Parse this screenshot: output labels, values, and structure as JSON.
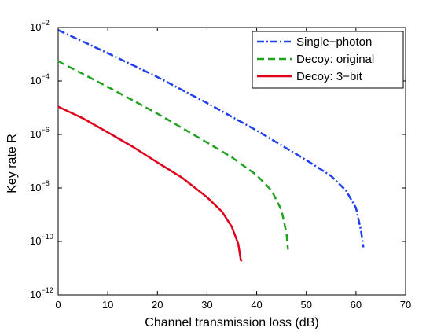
{
  "chart_data": {
    "type": "line",
    "title": "",
    "xlabel": "Channel transmission loss (dB)",
    "ylabel": "Key rate R",
    "xlim": [
      0,
      70
    ],
    "ylim": [
      1e-12,
      0.01
    ],
    "yscale": "log",
    "grid": false,
    "legend_position": "top-right",
    "x_ticks": [
      "0",
      "10",
      "20",
      "30",
      "40",
      "50",
      "60",
      "70"
    ],
    "y_ticks": [
      {
        "base": "10",
        "exp": "−2",
        "value": 0.01
      },
      {
        "base": "10",
        "exp": "−4",
        "value": 0.0001
      },
      {
        "base": "10",
        "exp": "−6",
        "value": 1e-06
      },
      {
        "base": "10",
        "exp": "−8",
        "value": 1e-08
      },
      {
        "base": "10",
        "exp": "−10",
        "value": 1e-10
      },
      {
        "base": "10",
        "exp": "−12",
        "value": 1e-12
      }
    ],
    "series": [
      {
        "name": "Single−photon",
        "color": "#1f3ff0",
        "style": "dash-dot",
        "x": [
          0,
          10,
          20,
          30,
          40,
          50,
          55,
          58,
          60,
          61,
          61.5
        ],
        "y": [
          0.008,
          0.0011,
          0.00014,
          1.5e-05,
          1.4e-06,
          1.1e-07,
          2.8e-08,
          8e-09,
          1.8e-09,
          2.6e-10,
          6e-11
        ]
      },
      {
        "name": "Decoy: original",
        "color": "#21a321",
        "style": "dashed",
        "x": [
          0,
          10,
          20,
          30,
          35,
          40,
          43,
          45,
          46,
          46.3
        ],
        "y": [
          0.00055,
          6e-05,
          6e-06,
          5e-07,
          1.4e-07,
          3e-08,
          8e-09,
          1.5e-09,
          2e-10,
          5e-11
        ]
      },
      {
        "name": "Decoy: 3−bit",
        "color": "#e0001a",
        "style": "solid",
        "x": [
          0,
          5,
          10,
          15,
          20,
          25,
          30,
          33,
          35,
          36.3,
          36.8,
          37
        ],
        "y": [
          1.1e-05,
          4e-06,
          1.2e-06,
          3.5e-07,
          9e-08,
          2.4e-08,
          4.5e-09,
          1.3e-09,
          3.5e-10,
          8e-11,
          2e-11,
          1.8e-11
        ]
      }
    ]
  }
}
